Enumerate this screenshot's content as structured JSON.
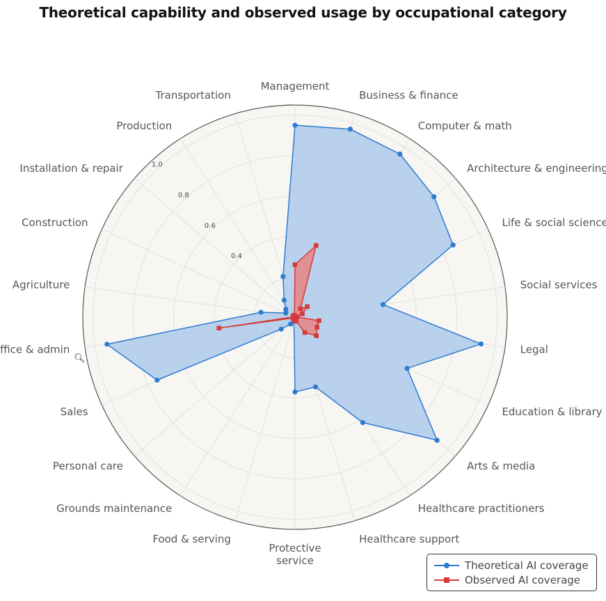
{
  "chart_data": {
    "type": "radar",
    "title": "Theoretical capability and observed usage by occupational category",
    "categories": [
      "Management",
      "Business & finance",
      "Computer & math",
      "Architecture & engineering",
      "Life & social sciences",
      "Social services",
      "Legal",
      "Education & library",
      "Arts & media",
      "Healthcare practitioners",
      "Healthcare support",
      "Protective\nservice",
      "Food & serving",
      "Grounds maintenance",
      "Personal care",
      "Sales",
      "Office & admin",
      "Agriculture",
      "Construction",
      "Installation & repair",
      "Production",
      "Transportation"
    ],
    "radial_ticks": [
      "0.4",
      "0.6",
      "0.8",
      "1.0"
    ],
    "rmax": 1.05,
    "series": [
      {
        "name": "Theoretical AI coverage",
        "color": "#2d7bd1",
        "fill": "#a9c8ea",
        "marker": "circle",
        "values": [
          0.95,
          0.97,
          0.96,
          0.91,
          0.86,
          0.44,
          0.93,
          0.61,
          0.93,
          0.62,
          0.36,
          0.37,
          0.02,
          0.04,
          0.09,
          0.75,
          0.94,
          0.17,
          0.05,
          0.06,
          0.1,
          0.21
        ]
      },
      {
        "name": "Observed AI coverage",
        "color": "#d43a3a",
        "fill": "#e88585",
        "marker": "square",
        "values": [
          0.26,
          0.37,
          0.05,
          0.08,
          0.04,
          0.01,
          0.12,
          0.12,
          0.14,
          0.09,
          0.02,
          0.02,
          0.01,
          0.01,
          0.01,
          0.01,
          0.38,
          0.01,
          0.01,
          0.01,
          0.01,
          0.01
        ]
      }
    ],
    "grid": true,
    "legend_position": "bottom-right"
  },
  "legend": {
    "series1_label": "Theoretical AI coverage",
    "series2_label": "Observed AI coverage"
  }
}
